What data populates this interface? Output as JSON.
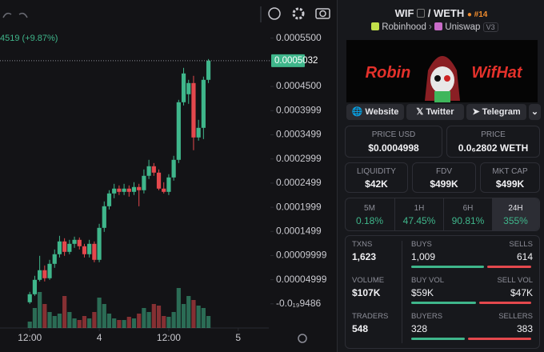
{
  "price_chart": {
    "type": "candlestick",
    "header_text": "4519 (+9.87%)",
    "xlim": [
      -6,
      48
    ],
    "ylim": [
      -5e-05,
      0.000566
    ],
    "volume_lim": [
      0,
      60
    ],
    "xticks": [
      {
        "value": 0,
        "label": "12:00"
      },
      {
        "value": 14,
        "label": "4"
      },
      {
        "value": 28,
        "label": "12:00"
      },
      {
        "value": 42,
        "label": "5"
      }
    ],
    "yticks": [
      {
        "value": 0.00055,
        "label": "0.0005500"
      },
      {
        "value": 0.00045,
        "label": "0.0004500"
      },
      {
        "value": 0.0003999,
        "label": "0.0003999"
      },
      {
        "value": 0.0003499,
        "label": "0.0003499"
      },
      {
        "value": 0.0002999,
        "label": "0.0002999"
      },
      {
        "value": 0.0002499,
        "label": "0.0002499"
      },
      {
        "value": 0.0001999,
        "label": "0.0001999"
      },
      {
        "value": 0.0001499,
        "label": "0.0001499"
      },
      {
        "value": 9.999e-05,
        "label": "0.00009999"
      },
      {
        "value": 4.999e-05,
        "label": "0.00004999"
      },
      {
        "value": -9.486e-20,
        "label": "-0.0₁₉9486"
      }
    ],
    "current_price": 0.0005032,
    "up_color": "#3fb68b",
    "down_color": "#e4484d",
    "open": [
      3.3e-06,
      1.99e-05,
      4.97e-05,
      6.96e-05,
      5.3e-05,
      8.28e-05,
      0.0001027,
      0.0001292,
      0.0001076,
      0.0001242,
      0.0001325,
      0.0001192,
      0.0001027,
      0.0001242,
      9.11e-05,
      0.0001573,
      0.000202,
      0.0002285,
      0.0002385,
      0.0002318,
      0.0002385,
      0.0002318,
      0.0002418,
      0.0002352,
      0.000265,
      0.0002848,
      0.0002716,
      0.0002385,
      0.0002318,
      0.0002616,
      0.0002981,
      0.0004173,
      0.0004339,
      0.000457,
      0.0003444,
      0.0003643,
      0.0004637
    ],
    "high": [
      2.48e-05,
      5.8e-05,
      9.94e-05,
      7.95e-05,
      9.11e-05,
      0.0001126,
      0.0001408,
      0.0001358,
      0.0001325,
      0.0001391,
      0.0001374,
      0.0001242,
      0.0001325,
      0.0001292,
      0.0001656,
      0.000212,
      0.0002352,
      0.0002484,
      0.0002451,
      0.0002484,
      0.0002451,
      0.0002517,
      0.0002484,
      0.0002782,
      0.0002981,
      0.0002914,
      0.0002782,
      0.0002517,
      0.0002683,
      0.0003064,
      0.0004223,
      0.0004885,
      0.0004637,
      0.000472,
      0.0003809,
      0.0004703,
      0.0005067
    ],
    "low": [
      0,
      1.66e-05,
      4.64e-05,
      4.64e-05,
      4.97e-05,
      7.45e-05,
      9.6e-05,
      9.94e-05,
      0.0001027,
      0.0001159,
      0.0001126,
      9.6e-05,
      9.6e-05,
      8.61e-05,
      8.61e-05,
      0.000149,
      0.0001954,
      0.0002186,
      0.0002252,
      0.0002252,
      0.0002219,
      0.0002252,
      0.000202,
      0.0002285,
      0.0002583,
      0.000265,
      0.0002352,
      0.0002285,
      0.0002252,
      0.000255,
      0.0002914,
      0.0004107,
      0.000414,
      0.000318,
      0.0003378,
      0.0003411,
      0.000457
    ],
    "close": [
      1.99e-05,
      4.97e-05,
      6.96e-05,
      5.3e-05,
      8.28e-05,
      0.0001027,
      0.0001292,
      0.0001076,
      0.0001242,
      0.0001325,
      0.0001192,
      0.0001027,
      0.0001242,
      9.11e-05,
      0.0001573,
      0.000202,
      0.0002285,
      0.0002385,
      0.0002318,
      0.0002385,
      0.0002318,
      0.0002418,
      0.0002352,
      0.000265,
      0.0002848,
      0.0002716,
      0.0002385,
      0.0002318,
      0.0002616,
      0.0002981,
      0.0004173,
      0.0004769,
      0.000457,
      0.0003444,
      0.0003643,
      0.0004637,
      0.0005034
    ],
    "volume": [
      8,
      25,
      45,
      30,
      20,
      15,
      18,
      40,
      20,
      12,
      10,
      15,
      12,
      20,
      38,
      30,
      18,
      12,
      10,
      10,
      14,
      12,
      18,
      25,
      20,
      30,
      28,
      15,
      14,
      20,
      50,
      30,
      40,
      35,
      28,
      25,
      15
    ]
  },
  "pair": {
    "base": "WIF",
    "quote": "/ WETH",
    "rank": "#14",
    "chain": "Robinhood",
    "dex": "Uniswap",
    "version": "V3"
  },
  "banner": {
    "left": "Robin",
    "right": "WifHat"
  },
  "links": [
    "Website",
    "Twitter",
    "Telegram"
  ],
  "prices": [
    {
      "label": "PRICE USD",
      "value": "$0.0004998"
    },
    {
      "label": "PRICE",
      "value": "0.0₆2802 WETH"
    }
  ],
  "metrics": [
    {
      "label": "LIQUIDITY",
      "value": "$42K"
    },
    {
      "label": "FDV",
      "value": "$499K"
    },
    {
      "label": "MKT CAP",
      "value": "$499K"
    }
  ],
  "changes": [
    {
      "label": "5M",
      "value": "0.18%"
    },
    {
      "label": "1H",
      "value": "47.45%"
    },
    {
      "label": "6H",
      "value": "90.81%"
    },
    {
      "label": "24H",
      "value": "355%"
    }
  ],
  "stats": [
    {
      "label": "TXNS",
      "value": "1,623",
      "buy_label": "BUYS",
      "buy_value": "1,009",
      "buy": 1009,
      "sell_label": "SELLS",
      "sell_value": "614",
      "sell": 614
    },
    {
      "label": "VOLUME",
      "value": "$107K",
      "buy_label": "BUY VOL",
      "buy_value": "$59K",
      "buy": 59000,
      "sell_label": "SELL VOL",
      "sell_value": "$47K",
      "sell": 47000
    },
    {
      "label": "TRADERS",
      "value": "548",
      "buy_label": "BUYERS",
      "buy_value": "328",
      "buy": 328,
      "sell_label": "SELLERS",
      "sell_value": "383",
      "sell": 383
    }
  ]
}
